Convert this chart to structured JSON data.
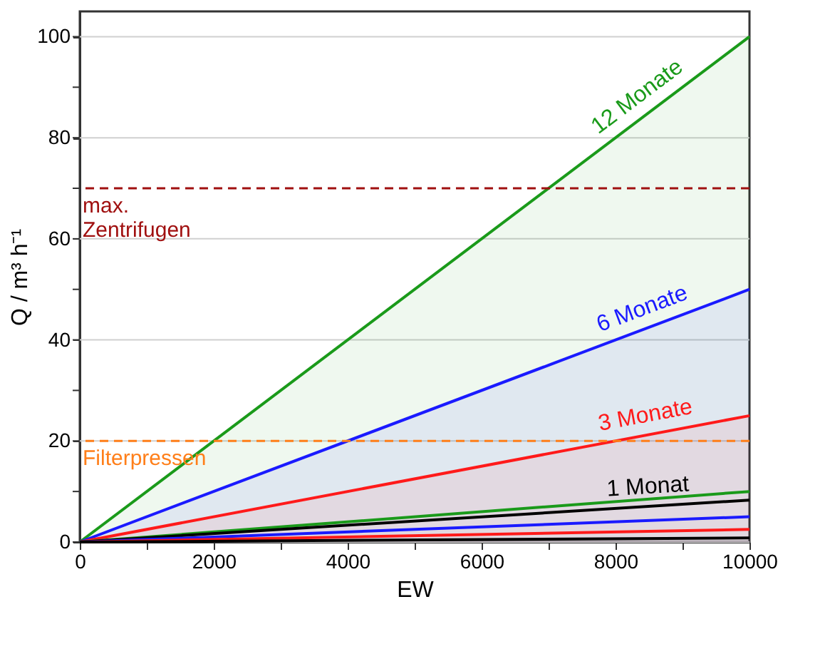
{
  "chart_data": {
    "type": "line",
    "xlabel": "EW",
    "ylabel": "Q / m³ h⁻¹",
    "x": [
      0,
      10000
    ],
    "series": [
      {
        "name": "12 Monate",
        "type": "area",
        "color": "#1a9a1a",
        "values": [
          0,
          100
        ]
      },
      {
        "name": "6 Monate",
        "type": "area",
        "color": "#1a1aff",
        "values": [
          0,
          50
        ]
      },
      {
        "name": "3 Monate",
        "type": "area",
        "color": "#ff1a1a",
        "values": [
          0,
          25
        ]
      },
      {
        "color": "#1a9a1a",
        "values": [
          0,
          10
        ]
      },
      {
        "name": "1 Monat",
        "color": "#000000",
        "values": [
          0,
          8.3
        ]
      },
      {
        "color": "#1a1aff",
        "values": [
          0,
          5
        ]
      },
      {
        "color": "#ff1a1a",
        "values": [
          0,
          2.5
        ]
      },
      {
        "color": "#000000",
        "values": [
          0,
          0.8
        ]
      }
    ],
    "xlim": [
      0,
      10000
    ],
    "xticks": [
      0,
      {
        "value": 1000,
        "label": null
      },
      2000,
      {
        "value": 3000,
        "label": null
      },
      4000,
      {
        "value": 5000,
        "label": null
      },
      6000,
      {
        "value": 7000,
        "label": null
      },
      8000,
      {
        "value": 9000,
        "label": null
      },
      10000
    ],
    "ylim": [
      0,
      105
    ],
    "yticks": [
      0,
      {
        "value": 10,
        "label": null
      },
      20,
      {
        "value": 30,
        "label": null
      },
      40,
      {
        "value": 50,
        "label": null
      },
      60,
      {
        "value": 70,
        "label": null
      },
      80,
      {
        "value": 90,
        "label": null
      },
      100
    ],
    "grid": "y",
    "line_style": "solid",
    "ref_lines": [
      {
        "axis": "y",
        "value": 70,
        "label": "max. Zentrifugen",
        "color": "#a01010",
        "line_style": "dashed"
      },
      {
        "axis": "y",
        "value": 20,
        "label": "Filterpressen",
        "color": "#ff7f1a",
        "line_style": "dashed"
      }
    ]
  }
}
